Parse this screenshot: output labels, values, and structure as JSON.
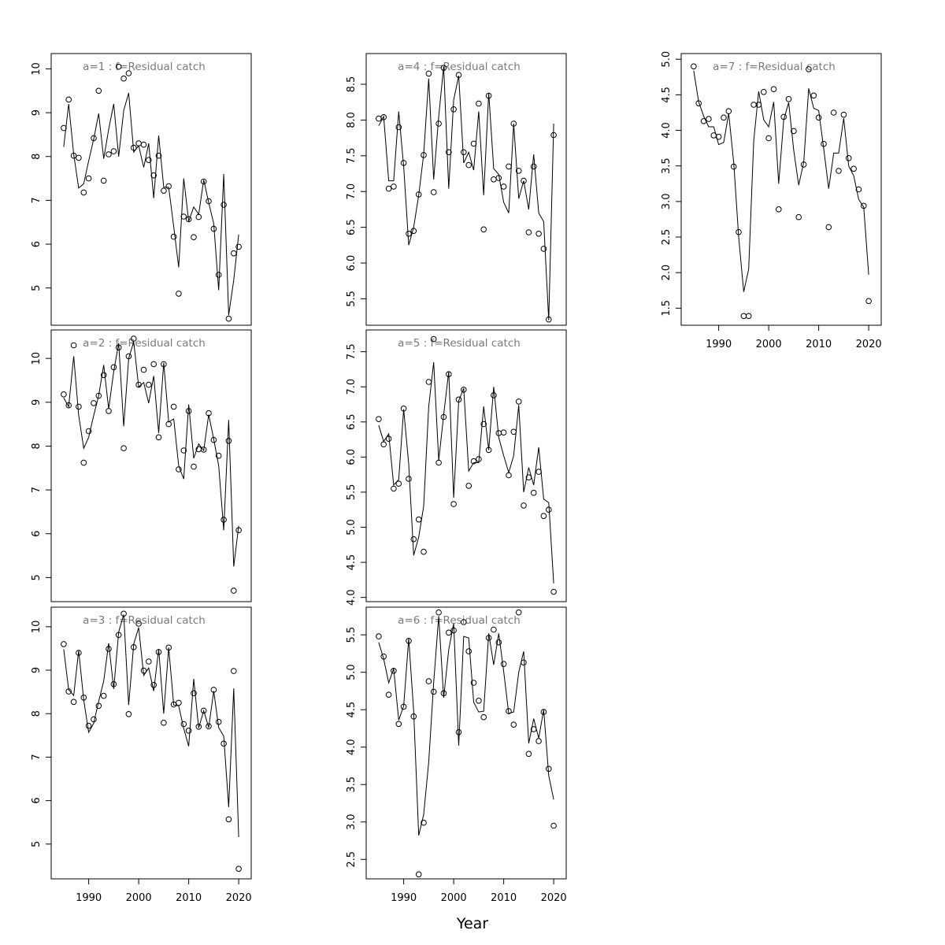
{
  "figure": {
    "xlabel": "Year"
  },
  "chart_data": [
    {
      "type": "line",
      "title": "a=1  :  f=Residual catch",
      "xlabel": "Year",
      "ylabel": "",
      "xlim": [
        1982.5,
        2022.5
      ],
      "ylim": [
        4.15,
        10.35
      ],
      "x_ticks": [
        1990,
        2000,
        2010,
        2020
      ],
      "y_ticks": [
        5,
        6,
        7,
        8,
        9,
        10
      ],
      "x": [
        1985,
        1986,
        1987,
        1988,
        1989,
        1990,
        1991,
        1992,
        1993,
        1994,
        1995,
        1996,
        1997,
        1998,
        1999,
        2000,
        2001,
        2002,
        2003,
        2004,
        2005,
        2006,
        2007,
        2008,
        2009,
        2010,
        2011,
        2012,
        2013,
        2014,
        2015,
        2016,
        2017,
        2018,
        2019,
        2020
      ],
      "series": [
        {
          "name": "observed",
          "values": [
            8.65,
            9.3,
            8.02,
            7.97,
            7.18,
            7.5,
            8.42,
            9.5,
            7.45,
            8.05,
            8.12,
            10.05,
            9.78,
            9.9,
            8.2,
            8.3,
            8.27,
            7.92,
            7.57,
            8.02,
            7.22,
            7.32,
            6.17,
            4.87,
            6.63,
            6.57,
            6.16,
            6.62,
            7.43,
            6.98,
            6.35,
            5.3,
            6.9,
            4.3,
            5.79,
            5.94
          ]
        },
        {
          "name": "fitted",
          "values": [
            8.22,
            9.2,
            8.05,
            7.28,
            7.38,
            7.9,
            8.4,
            8.98,
            7.95,
            8.62,
            9.2,
            8.0,
            9.05,
            9.45,
            8.1,
            8.25,
            7.75,
            8.3,
            7.05,
            8.48,
            7.3,
            7.3,
            6.4,
            5.47,
            7.5,
            6.52,
            6.85,
            6.68,
            7.47,
            6.95,
            6.47,
            4.95,
            7.6,
            4.38,
            5.18,
            6.22
          ]
        }
      ]
    },
    {
      "type": "line",
      "title": "a=2  :  f=Residual catch",
      "xlabel": "Year",
      "ylabel": "",
      "xlim": [
        1982.5,
        2022.5
      ],
      "ylim": [
        4.45,
        10.65
      ],
      "x_ticks": [
        1990,
        2000,
        2010,
        2020
      ],
      "y_ticks": [
        5,
        6,
        7,
        8,
        9,
        10
      ],
      "x": [
        1985,
        1986,
        1987,
        1988,
        1989,
        1990,
        1991,
        1992,
        1993,
        1994,
        1995,
        1996,
        1997,
        1998,
        1999,
        2000,
        2001,
        2002,
        2003,
        2004,
        2005,
        2006,
        2007,
        2008,
        2009,
        2010,
        2011,
        2012,
        2013,
        2014,
        2015,
        2016,
        2017,
        2018,
        2019,
        2020
      ],
      "series": [
        {
          "name": "observed",
          "values": [
            9.18,
            8.93,
            10.3,
            8.9,
            7.62,
            8.34,
            8.98,
            9.15,
            9.62,
            8.8,
            9.8,
            10.25,
            7.95,
            10.05,
            10.45,
            9.4,
            9.74,
            9.4,
            9.87,
            8.2,
            9.87,
            8.5,
            8.9,
            7.47,
            7.9,
            8.8,
            7.53,
            7.93,
            7.92,
            8.75,
            8.14,
            7.78,
            6.32,
            8.12,
            4.7,
            6.08
          ]
        },
        {
          "name": "fitted",
          "values": [
            9.1,
            8.9,
            10.05,
            8.7,
            7.95,
            8.2,
            8.7,
            9.15,
            9.85,
            8.85,
            9.7,
            10.35,
            8.45,
            10.0,
            10.38,
            9.35,
            9.45,
            8.98,
            9.6,
            8.3,
            9.9,
            8.55,
            8.62,
            7.55,
            7.25,
            8.95,
            7.72,
            8.05,
            7.9,
            8.72,
            8.16,
            7.55,
            6.08,
            8.6,
            5.25,
            6.18
          ]
        }
      ]
    },
    {
      "type": "line",
      "title": "a=3  :  f=Residual catch",
      "xlabel": "Year",
      "ylabel": "",
      "xlim": [
        1982.5,
        2022.5
      ],
      "ylim": [
        4.2,
        10.45
      ],
      "x_ticks": [
        1990,
        2000,
        2010,
        2020
      ],
      "y_ticks": [
        5,
        6,
        7,
        8,
        9,
        10
      ],
      "x": [
        1985,
        1986,
        1987,
        1988,
        1989,
        1990,
        1991,
        1992,
        1993,
        1994,
        1995,
        1996,
        1997,
        1998,
        1999,
        2000,
        2001,
        2002,
        2003,
        2004,
        2005,
        2006,
        2007,
        2008,
        2009,
        2010,
        2011,
        2012,
        2013,
        2014,
        2015,
        2016,
        2017,
        2018,
        2019,
        2020
      ],
      "series": [
        {
          "name": "observed",
          "values": [
            9.6,
            8.51,
            8.27,
            9.4,
            8.37,
            7.72,
            7.87,
            8.18,
            8.41,
            9.49,
            8.68,
            9.81,
            10.3,
            7.99,
            9.53,
            10.07,
            8.99,
            9.2,
            8.66,
            9.42,
            7.79,
            9.52,
            8.21,
            8.25,
            7.76,
            7.61,
            8.47,
            7.7,
            8.07,
            7.71,
            8.55,
            7.81,
            7.31,
            5.57,
            8.98,
            4.43
          ]
        },
        {
          "name": "fitted",
          "values": [
            9.48,
            8.55,
            8.42,
            9.45,
            8.32,
            7.57,
            7.78,
            8.28,
            8.75,
            9.62,
            8.57,
            9.88,
            10.28,
            8.2,
            9.6,
            9.98,
            8.88,
            9.05,
            8.52,
            9.48,
            8.0,
            9.52,
            8.2,
            8.18,
            7.66,
            7.25,
            8.8,
            7.67,
            8.07,
            7.68,
            8.52,
            7.68,
            7.48,
            5.85,
            8.58,
            5.16
          ]
        }
      ]
    },
    {
      "type": "line",
      "title": "a=4  :  f=Residual catch",
      "xlabel": "Year",
      "ylabel": "",
      "xlim": [
        1982.5,
        2022.5
      ],
      "ylim": [
        5.13,
        8.93
      ],
      "x_ticks": [
        1990,
        2000,
        2010,
        2020
      ],
      "y_ticks": [
        5.5,
        6.0,
        6.5,
        7.0,
        7.5,
        8.0,
        8.5
      ],
      "x": [
        1985,
        1986,
        1987,
        1988,
        1989,
        1990,
        1991,
        1992,
        1993,
        1994,
        1995,
        1996,
        1997,
        1998,
        1999,
        2000,
        2001,
        2002,
        2003,
        2004,
        2005,
        2006,
        2007,
        2008,
        2009,
        2010,
        2011,
        2012,
        2013,
        2014,
        2015,
        2016,
        2017,
        2018,
        2019,
        2020
      ],
      "series": [
        {
          "name": "observed",
          "values": [
            8.02,
            8.04,
            7.04,
            7.07,
            7.9,
            7.4,
            6.41,
            6.45,
            6.96,
            7.51,
            8.65,
            6.99,
            7.95,
            8.73,
            7.55,
            8.15,
            8.63,
            7.55,
            7.37,
            7.67,
            8.23,
            6.47,
            8.34,
            7.17,
            7.19,
            7.07,
            7.35,
            7.95,
            7.29,
            7.15,
            6.43,
            7.35,
            6.41,
            6.2,
            5.21,
            7.79
          ]
        },
        {
          "name": "fitted",
          "values": [
            7.92,
            8.05,
            7.15,
            7.15,
            8.12,
            7.35,
            6.25,
            6.5,
            6.95,
            7.52,
            8.58,
            7.17,
            8.05,
            8.75,
            7.04,
            8.28,
            8.62,
            7.4,
            7.55,
            7.3,
            8.12,
            6.95,
            8.38,
            7.32,
            7.24,
            6.85,
            6.7,
            7.95,
            6.9,
            7.15,
            6.75,
            7.52,
            6.7,
            6.58,
            5.2,
            7.95
          ]
        }
      ]
    },
    {
      "type": "line",
      "title": "a=5  :  f=Residual catch",
      "xlabel": "Year",
      "ylabel": "",
      "xlim": [
        1982.5,
        2022.5
      ],
      "ylim": [
        3.94,
        7.81
      ],
      "x_ticks": [
        1990,
        2000,
        2010,
        2020
      ],
      "y_ticks": [
        4.0,
        4.5,
        5.0,
        5.5,
        6.0,
        6.5,
        7.0,
        7.5
      ],
      "x": [
        1985,
        1986,
        1987,
        1988,
        1989,
        1990,
        1991,
        1992,
        1993,
        1994,
        1995,
        1996,
        1997,
        1998,
        1999,
        2000,
        2001,
        2002,
        2003,
        2004,
        2005,
        2006,
        2007,
        2008,
        2009,
        2010,
        2011,
        2012,
        2013,
        2014,
        2015,
        2016,
        2017,
        2018,
        2019,
        2020
      ],
      "series": [
        {
          "name": "observed",
          "values": [
            6.54,
            6.18,
            6.26,
            5.55,
            5.62,
            6.69,
            5.69,
            4.83,
            5.11,
            4.65,
            7.07,
            7.68,
            5.92,
            6.57,
            7.18,
            5.33,
            6.82,
            6.96,
            5.59,
            5.94,
            5.97,
            6.47,
            6.1,
            6.88,
            6.34,
            6.35,
            5.74,
            6.36,
            6.79,
            5.31,
            5.71,
            5.49,
            5.79,
            5.16,
            5.25,
            4.08
          ]
        },
        {
          "name": "fitted",
          "values": [
            6.45,
            6.22,
            6.33,
            5.6,
            5.68,
            6.68,
            5.9,
            4.6,
            4.86,
            5.3,
            6.72,
            7.35,
            5.95,
            6.6,
            7.22,
            5.42,
            6.8,
            6.98,
            5.8,
            5.92,
            5.92,
            6.72,
            6.1,
            7.0,
            6.28,
            6.02,
            5.78,
            6.02,
            6.74,
            5.5,
            5.85,
            5.6,
            6.14,
            5.4,
            5.35,
            4.2
          ]
        }
      ]
    },
    {
      "type": "line",
      "title": "a=6  :  f=Residual catch",
      "xlabel": "Year",
      "ylabel": "",
      "xlim": [
        1982.5,
        2022.5
      ],
      "ylim": [
        2.24,
        5.87
      ],
      "x_ticks": [
        1990,
        2000,
        2010,
        2020
      ],
      "y_ticks": [
        2.5,
        3.0,
        3.5,
        4.0,
        4.5,
        5.0,
        5.5
      ],
      "x": [
        1985,
        1986,
        1987,
        1988,
        1989,
        1990,
        1991,
        1992,
        1993,
        1994,
        1995,
        1996,
        1997,
        1998,
        1999,
        2000,
        2001,
        2002,
        2003,
        2004,
        2005,
        2006,
        2007,
        2008,
        2009,
        2010,
        2011,
        2012,
        2013,
        2014,
        2015,
        2016,
        2017,
        2018,
        2019,
        2020
      ],
      "series": [
        {
          "name": "observed",
          "values": [
            5.48,
            5.21,
            4.7,
            5.02,
            4.31,
            4.54,
            5.42,
            4.41,
            2.3,
            2.99,
            4.88,
            4.74,
            5.8,
            4.72,
            5.53,
            5.56,
            4.2,
            5.67,
            5.28,
            4.86,
            4.62,
            4.4,
            5.46,
            5.57,
            5.4,
            5.11,
            4.48,
            4.3,
            5.8,
            5.13,
            3.91,
            4.24,
            4.08,
            4.47,
            3.71,
            2.95
          ]
        },
        {
          "name": "fitted",
          "values": [
            5.4,
            5.18,
            4.86,
            5.05,
            4.36,
            4.55,
            5.45,
            4.48,
            2.82,
            3.1,
            3.8,
            4.86,
            5.75,
            4.66,
            5.3,
            5.65,
            4.02,
            5.48,
            5.46,
            4.6,
            4.47,
            4.48,
            5.52,
            5.1,
            5.52,
            5.01,
            4.45,
            4.47,
            5.0,
            5.28,
            4.05,
            4.38,
            4.12,
            4.5,
            3.62,
            3.3
          ]
        }
      ]
    },
    {
      "type": "line",
      "title": "a=7  :  f=Residual catch",
      "xlabel": "Year",
      "ylabel": "",
      "xlim": [
        1982.5,
        2022.5
      ],
      "ylim": [
        1.26,
        5.08
      ],
      "x_ticks": [
        1990,
        2000,
        2010,
        2020
      ],
      "y_ticks": [
        1.5,
        2.0,
        2.5,
        3.0,
        3.5,
        4.0,
        4.5,
        5.0
      ],
      "x": [
        1985,
        1986,
        1987,
        1988,
        1989,
        1990,
        1991,
        1992,
        1993,
        1994,
        1995,
        1996,
        1997,
        1998,
        1999,
        2000,
        2001,
        2002,
        2003,
        2004,
        2005,
        2006,
        2007,
        2008,
        2009,
        2010,
        2011,
        2012,
        2013,
        2014,
        2015,
        2016,
        2017,
        2018,
        2019,
        2020
      ],
      "series": [
        {
          "name": "observed",
          "values": [
            4.9,
            4.38,
            4.13,
            4.16,
            3.93,
            3.91,
            4.18,
            4.27,
            3.49,
            2.57,
            1.39,
            1.39,
            4.36,
            4.36,
            4.54,
            3.89,
            4.58,
            2.89,
            4.19,
            4.44,
            3.99,
            2.78,
            3.52,
            4.86,
            4.49,
            4.18,
            3.81,
            2.64,
            4.25,
            3.43,
            4.22,
            3.61,
            3.46,
            3.17,
            2.94,
            1.6
          ]
        },
        {
          "name": "fitted",
          "values": [
            4.84,
            4.4,
            4.2,
            4.05,
            4.05,
            3.8,
            3.83,
            4.24,
            3.55,
            2.5,
            1.73,
            2.05,
            3.85,
            4.55,
            4.15,
            4.05,
            4.4,
            3.25,
            4.15,
            4.39,
            3.72,
            3.23,
            3.55,
            4.59,
            4.31,
            4.28,
            3.74,
            3.18,
            3.68,
            3.68,
            4.17,
            3.5,
            3.36,
            3.03,
            2.92,
            1.97
          ]
        }
      ]
    }
  ]
}
